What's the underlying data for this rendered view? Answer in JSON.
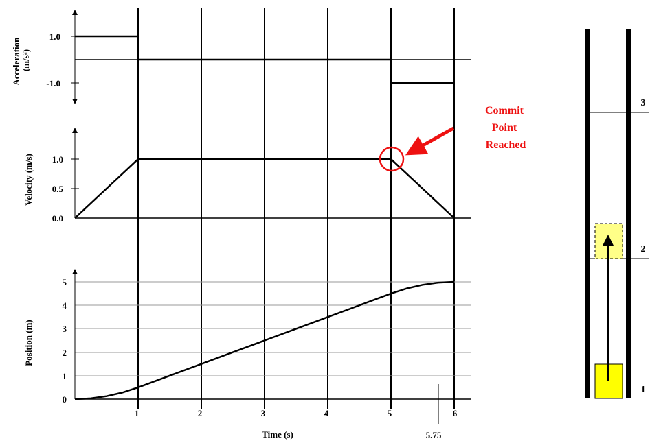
{
  "chart_data": [
    {
      "type": "line",
      "title": "",
      "ylabel": "Acceleration (m/s²)",
      "ytick_labels": [
        "1.0",
        "-1.0"
      ],
      "yticks": [
        1.0,
        -1.0
      ],
      "ylim": [
        -1.5,
        1.5
      ],
      "xlim": [
        0,
        6
      ],
      "series": [
        {
          "x": [
            0,
            1,
            1,
            5,
            5,
            6
          ],
          "y": [
            1.0,
            1.0,
            0,
            0,
            -1.0,
            -1.0
          ]
        }
      ]
    },
    {
      "type": "line",
      "title": "",
      "ylabel": "Velocity (m/s)",
      "ytick_labels": [
        "1.0",
        "0.5",
        "0.0"
      ],
      "yticks": [
        1.0,
        0.5,
        0.0
      ],
      "ylim": [
        0,
        1.5
      ],
      "xlim": [
        0,
        6
      ],
      "series": [
        {
          "x": [
            0,
            1,
            5,
            6
          ],
          "y": [
            0,
            1.0,
            1.0,
            0
          ]
        }
      ],
      "annotation": {
        "text": [
          "Commit",
          "Point",
          "Reached"
        ],
        "target": {
          "x": 5,
          "y": 1.0
        },
        "color": "#ee1111"
      }
    },
    {
      "type": "line",
      "title": "",
      "ylabel": "Position (m)",
      "xlabel": "Time (s)",
      "ytick_labels": [
        "5",
        "4",
        "3",
        "2",
        "1",
        "0"
      ],
      "yticks": [
        5,
        4,
        3,
        2,
        1,
        0
      ],
      "ylim": [
        0,
        5.5
      ],
      "xlim": [
        0,
        6
      ],
      "xticks": [
        1,
        2,
        3,
        4,
        5,
        6
      ],
      "xtick_labels": [
        "1",
        "2",
        "3",
        "4",
        "5",
        "6"
      ],
      "extra_x_marker": {
        "x": 5.75,
        "label": "5.75"
      },
      "grid": true,
      "series": [
        {
          "x": [
            0,
            0.25,
            0.5,
            0.75,
            1,
            1.5,
            2,
            2.5,
            3,
            3.5,
            4,
            4.5,
            5,
            5.25,
            5.5,
            5.75,
            6
          ],
          "y": [
            0,
            0.031,
            0.125,
            0.281,
            0.5,
            1.0,
            1.5,
            2.0,
            2.5,
            3.0,
            3.5,
            4.0,
            4.5,
            4.719,
            4.875,
            4.969,
            5.0
          ]
        }
      ]
    }
  ],
  "elevator": {
    "floor_labels": [
      "3",
      "2",
      "1"
    ],
    "car_color": "#ffff00",
    "ghost_car_color": "#ffff88"
  }
}
